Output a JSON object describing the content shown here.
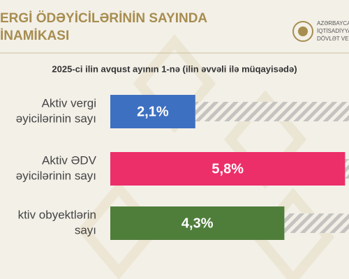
{
  "header": {
    "title_lines": [
      "ERGİ ÖDƏYİCİLƏRİNİN SAYINDA",
      "İNAMİKASI"
    ],
    "logo_lines": [
      "AZƏRBAYCA",
      "İQTİSADİYYA",
      "DÖVLƏT VER"
    ]
  },
  "chart_data": {
    "type": "hbar",
    "subtitle": "2025-ci ilin avqust ayının 1-nə (ilin əvvəli ilə müqayisədə)",
    "categories": [
      [
        "Aktiv vergi",
        "əyicilərinin sayı"
      ],
      [
        "Aktiv ƏDV",
        "əyicilərinin sayı"
      ],
      [
        "ktiv obyektlərin",
        "sayı"
      ]
    ],
    "values": [
      2.1,
      5.8,
      4.3
    ],
    "value_labels": [
      "2,1%",
      "5,8%",
      "4,3%"
    ],
    "colors": [
      "#3e70c1",
      "#ec2e69",
      "#4f7e3b"
    ]
  }
}
